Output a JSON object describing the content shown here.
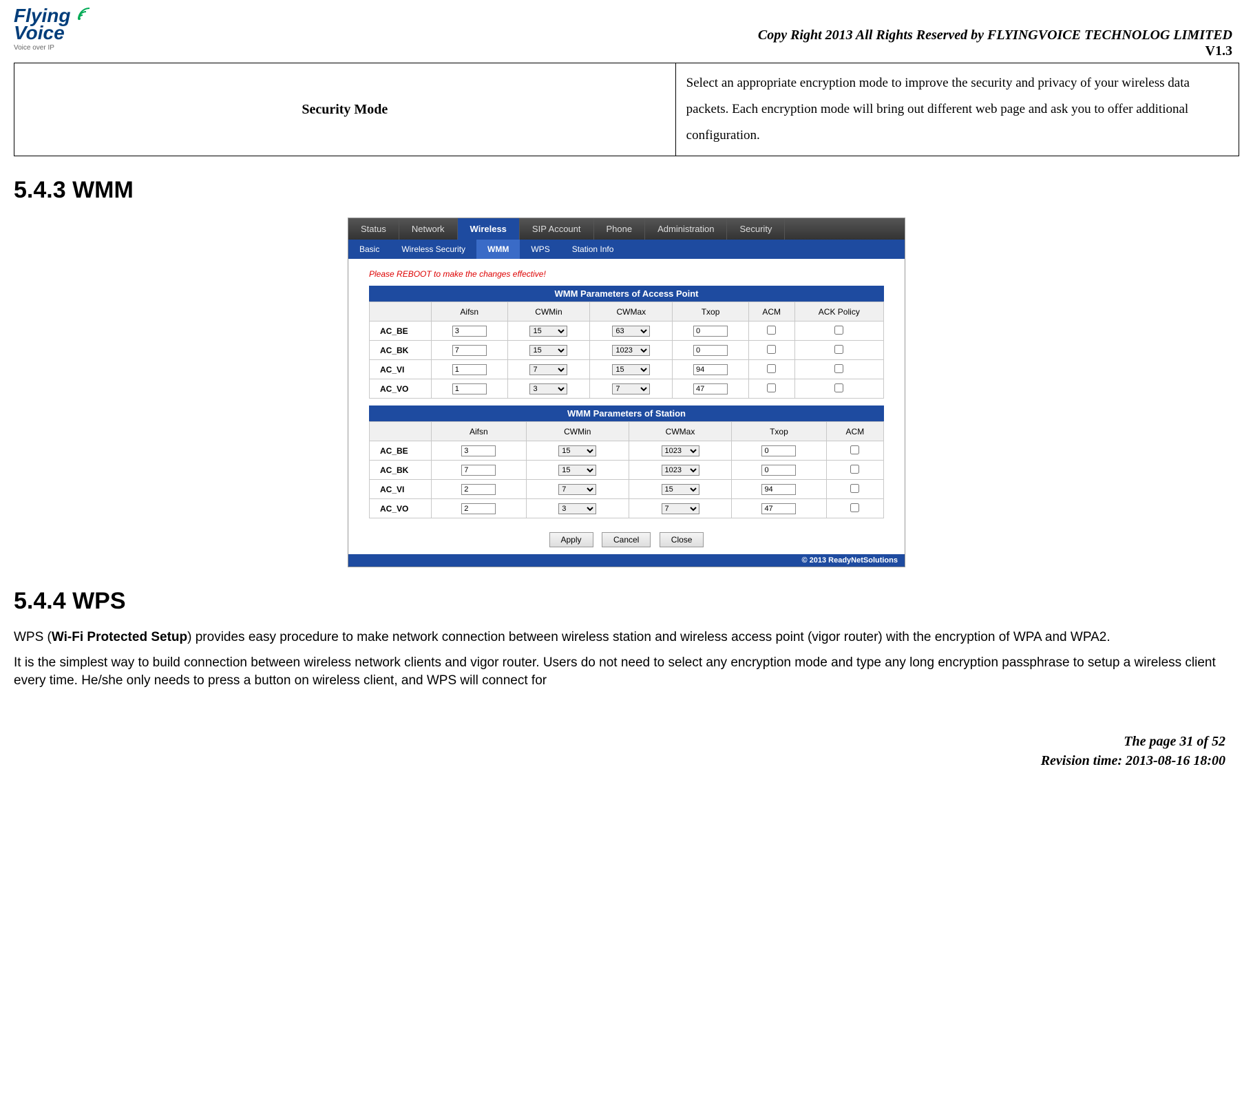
{
  "header": {
    "logo_line1": "Flying",
    "logo_line2": "Voice",
    "logo_sub": "Voice over IP",
    "copyright": "Copy Right 2013 All Rights Reserved by FLYINGVOICE TECHNOLOG LIMITED",
    "version": "V1.3"
  },
  "security_table": {
    "label": "Security Mode",
    "desc": "Select an appropriate encryption mode to improve the security and privacy of your wireless data packets. Each encryption mode will bring out different web page and ask you to offer additional configuration."
  },
  "sections": {
    "wmm_heading": "5.4.3 WMM",
    "wps_heading": "5.4.4 WPS"
  },
  "ui": {
    "top_tabs": [
      "Status",
      "Network",
      "Wireless",
      "SIP Account",
      "Phone",
      "Administration",
      "Security"
    ],
    "top_active_index": 2,
    "sub_tabs": [
      "Basic",
      "Wireless Security",
      "WMM",
      "WPS",
      "Station Info"
    ],
    "sub_active_index": 2,
    "reboot_msg": "Please REBOOT to make the changes effective!",
    "ap_title": "WMM Parameters of Access Point",
    "ap_headers": [
      "",
      "Aifsn",
      "CWMin",
      "CWMax",
      "Txop",
      "ACM",
      "ACK Policy"
    ],
    "ap_rows": [
      {
        "name": "AC_BE",
        "aifsn": "3",
        "cwmin": "15",
        "cwmax": "63",
        "txop": "0"
      },
      {
        "name": "AC_BK",
        "aifsn": "7",
        "cwmin": "15",
        "cwmax": "1023",
        "txop": "0"
      },
      {
        "name": "AC_VI",
        "aifsn": "1",
        "cwmin": "7",
        "cwmax": "15",
        "txop": "94"
      },
      {
        "name": "AC_VO",
        "aifsn": "1",
        "cwmin": "3",
        "cwmax": "7",
        "txop": "47"
      }
    ],
    "sta_title": "WMM Parameters of Station",
    "sta_headers": [
      "",
      "Aifsn",
      "CWMin",
      "CWMax",
      "Txop",
      "ACM"
    ],
    "sta_rows": [
      {
        "name": "AC_BE",
        "aifsn": "3",
        "cwmin": "15",
        "cwmax": "1023",
        "txop": "0"
      },
      {
        "name": "AC_BK",
        "aifsn": "7",
        "cwmin": "15",
        "cwmax": "1023",
        "txop": "0"
      },
      {
        "name": "AC_VI",
        "aifsn": "2",
        "cwmin": "7",
        "cwmax": "15",
        "txop": "94"
      },
      {
        "name": "AC_VO",
        "aifsn": "2",
        "cwmin": "3",
        "cwmax": "7",
        "txop": "47"
      }
    ],
    "buttons": {
      "apply": "Apply",
      "cancel": "Cancel",
      "close": "Close"
    },
    "footer_bar": "© 2013 ReadyNetSolutions"
  },
  "wps_text": {
    "prefix": "WPS (",
    "bold": "Wi-Fi Protected Setup",
    "rest1": ") provides easy procedure to make network connection between wireless station and wireless access point (vigor router) with the encryption of WPA and WPA2.",
    "rest2": "It is the simplest way to build connection between wireless network clients and vigor router. Users do not need to select any encryption mode and type any long encryption passphrase to setup a wireless client every time. He/she only needs to press a button on wireless client, and WPS will connect for"
  },
  "footer": {
    "page": "The page 31 of 52",
    "revision": "Revision time: 2013-08-16 18:00"
  }
}
